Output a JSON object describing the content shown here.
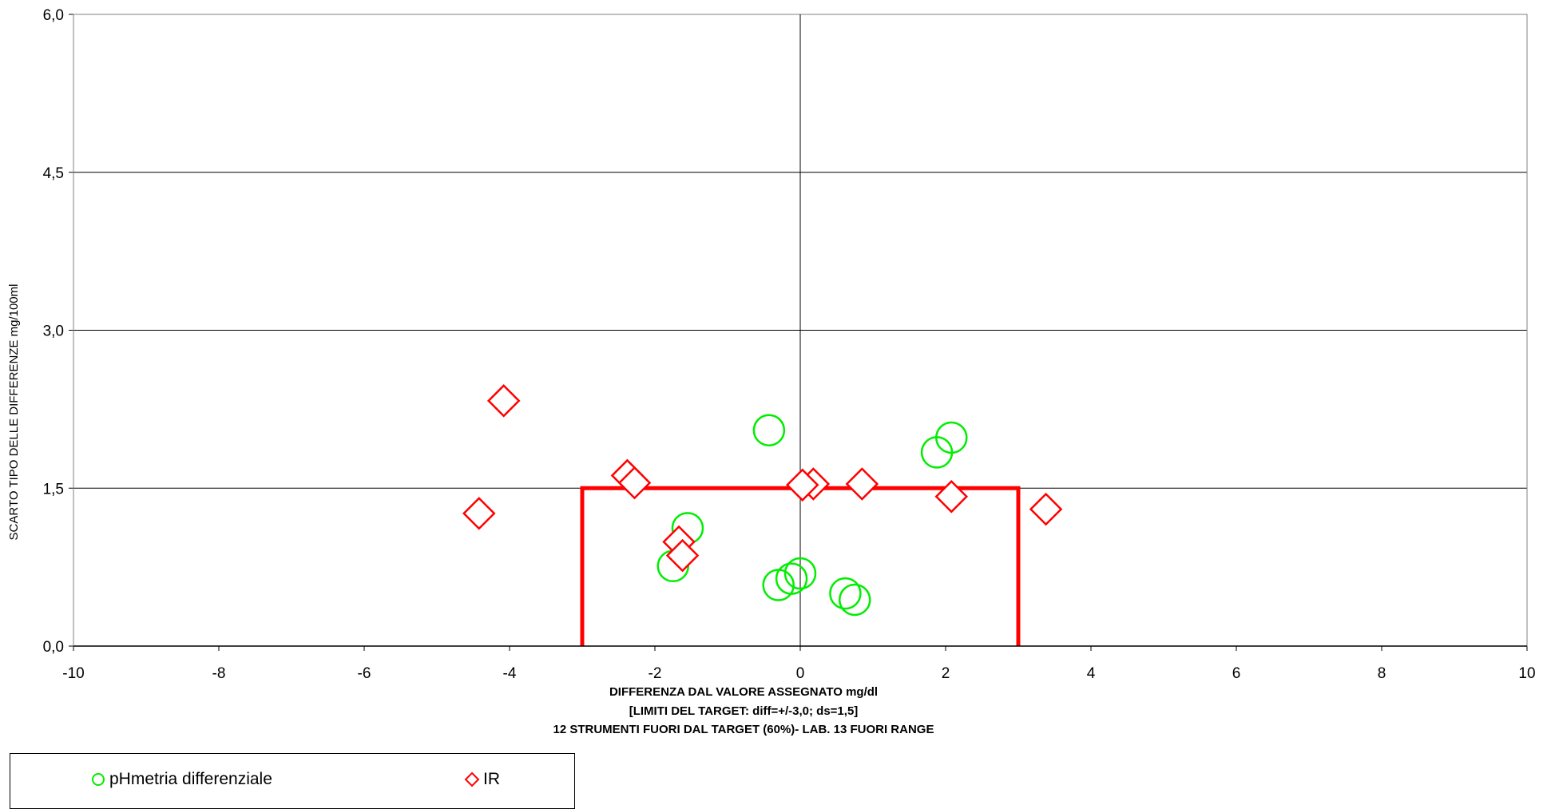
{
  "chart_data": {
    "type": "scatter",
    "xlabel": "DIFFERENZA DAL VALORE ASSEGNATO mg/dl",
    "xlabel_line2": "[LIMITI DEL TARGET: diff=+/-3,0; ds=1,5]",
    "xlabel_line3": "12 STRUMENTI FUORI DAL TARGET (60%)- LAB. 13 FUORI RANGE",
    "ylabel": "SCARTO TIPO DELLE DIFFERENZE mg/100ml",
    "xlim": [
      -10,
      10
    ],
    "ylim": [
      0,
      6
    ],
    "x_ticks": [
      "-10",
      "-8",
      "-6",
      "-4",
      "-2",
      "0",
      "2",
      "4",
      "6",
      "8",
      "10"
    ],
    "y_ticks": [
      "0,0",
      "1,5",
      "3,0",
      "4,5",
      "6,0"
    ],
    "grid": "horizontal",
    "legend_position": "bottom-left",
    "target_limits": {
      "diff": 3.0,
      "ds": 1.5,
      "color": "#ff0000"
    },
    "series": [
      {
        "name": "pHmetria differenziale",
        "marker": "circle",
        "color": "#00ee00",
        "points": [
          [
            -0.43,
            2.05
          ],
          [
            1.88,
            1.84
          ],
          [
            2.08,
            1.98
          ],
          [
            -1.55,
            1.12
          ],
          [
            -1.75,
            0.76
          ],
          [
            -0.3,
            0.58
          ],
          [
            -0.12,
            0.64
          ],
          [
            0.0,
            0.69
          ],
          [
            0.62,
            0.5
          ],
          [
            0.75,
            0.44
          ]
        ]
      },
      {
        "name": "IR",
        "marker": "diamond",
        "color": "#ff0000",
        "points": [
          [
            -4.08,
            2.33
          ],
          [
            -4.42,
            1.26
          ],
          [
            -2.38,
            1.62
          ],
          [
            -2.28,
            1.55
          ],
          [
            -1.67,
            0.99
          ],
          [
            -1.62,
            0.86
          ],
          [
            0.18,
            1.54
          ],
          [
            0.03,
            1.53
          ],
          [
            0.85,
            1.54
          ],
          [
            2.08,
            1.42
          ],
          [
            3.38,
            1.3
          ]
        ]
      }
    ]
  }
}
